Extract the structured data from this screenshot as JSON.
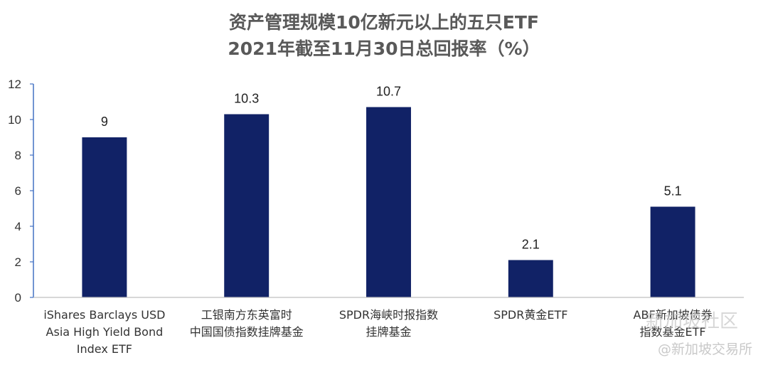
{
  "chart_data": {
    "type": "bar",
    "title": [
      "资产管理规模10亿新元以上的五只ETF",
      "2021年截至11月30日总回报率（%）"
    ],
    "categories": [
      [
        "iShares Barclays USD",
        "Asia High Yield Bond",
        "Index ETF"
      ],
      [
        "工银南方东英富时",
        "中国国债指数挂牌基金"
      ],
      [
        "SPDR海峡时报指数",
        "挂牌基金"
      ],
      [
        "SPDR黄金ETF"
      ],
      [
        "ABF新加坡债券",
        "指数基金ETF"
      ]
    ],
    "values": [
      9,
      10.3,
      10.7,
      2.1,
      5.1
    ],
    "data_labels": [
      "9",
      "10.3",
      "10.7",
      "2.1",
      "5.1"
    ],
    "ylim": [
      0,
      12
    ],
    "yticks": [
      0,
      2,
      4,
      6,
      8,
      10,
      12
    ],
    "bar_color": "#112266",
    "axis_color": "#4472C4",
    "grid": false,
    "legend": "none"
  },
  "watermark": {
    "text1": "新加坡社区",
    "text2": "@新加坡交易所"
  }
}
